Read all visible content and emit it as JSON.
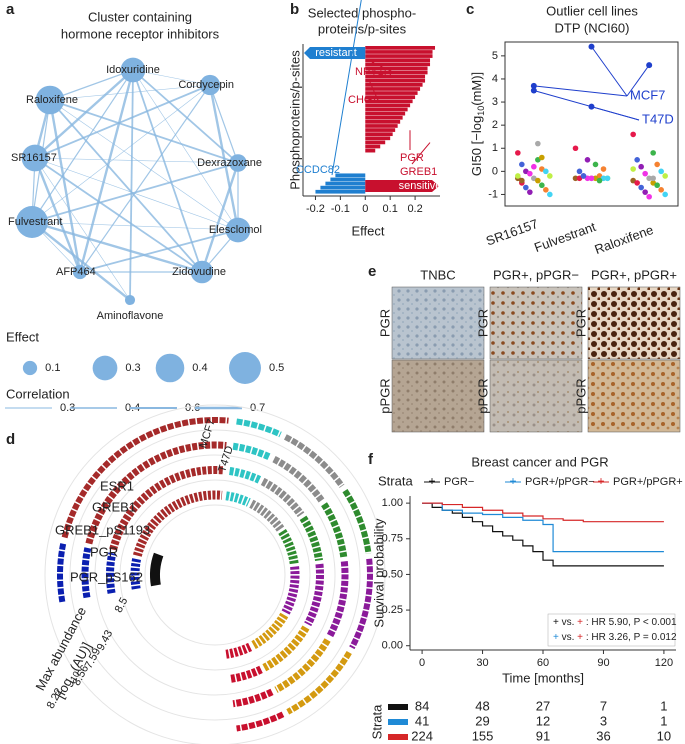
{
  "panel_labels": [
    "a",
    "b",
    "c",
    "d",
    "e",
    "f"
  ],
  "network": {
    "title": [
      "Cluster containing",
      "hormone receptor inhibitors"
    ],
    "nodes": [
      {
        "label": "Idoxuridine",
        "effect": 0.3
      },
      {
        "label": "Cordycepin",
        "effect": 0.2
      },
      {
        "label": "Raloxifene",
        "effect": 0.4
      },
      {
        "label": "Dexrazoxane",
        "effect": 0.15
      },
      {
        "label": "SR16157",
        "effect": 0.35
      },
      {
        "label": "Elesclomol",
        "effect": 0.3
      },
      {
        "label": "Fulvestrant",
        "effect": 0.5
      },
      {
        "label": "Zidovudine",
        "effect": 0.25
      },
      {
        "label": "AFP464",
        "effect": 0.1
      },
      {
        "label": "Aminoflavone",
        "effect": 0.05
      }
    ],
    "legend": {
      "effect_title": "Effect",
      "effect": [
        0.1,
        0.3,
        0.4,
        0.5
      ],
      "correlation_title": "Correlation",
      "correlation": [
        0.3,
        0.4,
        0.6,
        0.7
      ]
    }
  },
  "chart_data": [
    {
      "type": "hbar",
      "title": [
        "Selected phospho-",
        "proteins/p-sites"
      ],
      "y_label": "Phosphoproteins/p-sites",
      "x_label": "Effect",
      "xlim": [
        -0.25,
        0.3
      ],
      "xticks": [
        -0.2,
        -0.1,
        0,
        0.1,
        0.2
      ],
      "series": [
        {
          "name": "sensitive",
          "color": "#c8102e",
          "values": [
            0.28,
            0.27,
            0.27,
            0.26,
            0.26,
            0.25,
            0.25,
            0.24,
            0.24,
            0.23,
            0.22,
            0.21,
            0.2,
            0.19,
            0.18,
            0.17,
            0.16,
            0.15,
            0.14,
            0.13,
            0.12,
            0.11,
            0.1,
            0.08,
            0.06,
            0.04
          ]
        },
        {
          "name": "resistant",
          "color": "#1f7fd0",
          "values": [
            -0.12,
            -0.14,
            -0.16,
            -0.18,
            -0.2
          ]
        }
      ],
      "annotations": [
        "NPY1R",
        "CHGA",
        "PGR",
        "GREB1",
        "CCDC82"
      ]
    },
    {
      "type": "swarm",
      "title": [
        "Outlier cell lines",
        "DTP (NCI60)"
      ],
      "y_label": [
        "GI50 [−log",
        "10",
        "(mM)]"
      ],
      "categories": [
        "SR16157",
        "Fulvestrant",
        "Raloxifene"
      ],
      "ylim": [
        -1.5,
        5.6
      ],
      "yticks": [
        -1,
        0,
        1,
        2,
        3,
        4,
        5
      ],
      "values": [
        [
          0.8,
          0.5,
          0.3,
          0.1,
          0,
          0,
          -0.1,
          -0.2,
          -0.3,
          -0.3,
          -0.4,
          -0.5,
          -0.6,
          -0.7,
          -0.8,
          -0.9,
          -1,
          0.2,
          -0.2,
          1.2,
          -0.4,
          0.6
        ],
        [
          1.0,
          0.3,
          0,
          -0.2,
          -0.2,
          -0.3,
          -0.3,
          -0.3,
          -0.3,
          -0.3,
          -0.3,
          -0.3,
          -0.4,
          -0.2,
          0.1,
          0.5,
          -0.3,
          -0.3
        ],
        [
          1.6,
          0.8,
          0.5,
          0.3,
          0.2,
          0,
          -0.1,
          -0.2,
          -0.3,
          -0.4,
          -0.5,
          -0.5,
          -0.6,
          -0.7,
          -0.8,
          -0.9,
          -1,
          -1.1,
          0.1,
          -0.3
        ]
      ],
      "point_colors": [
        "#e6194b",
        "#3cb44b",
        "#4363d8",
        "#f58231",
        "#911eb4",
        "#42d4f4",
        "#f032e6",
        "#bfef45",
        "#a9a9a9",
        "#9a6324",
        "#c8a000"
      ],
      "series": [
        {
          "name": "MCF7",
          "color": "#1f3fcc",
          "values": [
            3.7,
            5.4,
            4.6
          ]
        },
        {
          "name": "T47D",
          "color": "#1f3fcc",
          "values": [
            3.5,
            2.8,
            null
          ]
        }
      ]
    },
    {
      "type": "survival",
      "title": "Breast cancer and PGR",
      "legend_title": "Strata",
      "y_label": "Survival probability",
      "x_label": "Time [months]",
      "xlim": [
        -6,
        126
      ],
      "xticks": [
        0,
        30,
        60,
        90,
        120
      ],
      "ylim": [
        -0.03,
        1.05
      ],
      "yticks": [
        {
          "value": 0,
          "label": "0.00"
        },
        {
          "value": 0.25,
          "label": "0.25"
        },
        {
          "value": 0.5,
          "label": "0.50"
        },
        {
          "value": 0.75,
          "label": "0.75"
        },
        {
          "value": 1,
          "label": "1.00"
        }
      ],
      "series": [
        {
          "name": "PGR−",
          "color": "#111111",
          "x": [
            0,
            5,
            10,
            15,
            20,
            25,
            30,
            35,
            40,
            45,
            50,
            55,
            60,
            65,
            70,
            120
          ],
          "values": [
            1,
            0.97,
            0.95,
            0.93,
            0.9,
            0.87,
            0.84,
            0.8,
            0.77,
            0.74,
            0.7,
            0.66,
            0.6,
            0.56,
            0.56,
            0.56
          ]
        },
        {
          "name": "PGR+/pPGR−",
          "color": "#1f8ad6",
          "x": [
            0,
            10,
            20,
            30,
            40,
            50,
            60,
            65,
            70,
            120
          ],
          "values": [
            1,
            0.95,
            0.93,
            0.92,
            0.9,
            0.88,
            0.85,
            0.66,
            0.66,
            0.66
          ]
        },
        {
          "name": "PGR+/pPGR+",
          "color": "#d62728",
          "x": [
            0,
            10,
            20,
            30,
            40,
            50,
            60,
            70,
            80,
            90,
            120
          ],
          "values": [
            1,
            0.99,
            0.97,
            0.95,
            0.93,
            0.91,
            0.89,
            0.88,
            0.87,
            0.87,
            0.87
          ]
        }
      ],
      "annotations": [
        {
          "prefix": "vs.",
          "text": ": HR 5.90, P < 0.001"
        },
        {
          "prefix": "vs.",
          "text": ": HR 3.26, P = 0.012"
        }
      ],
      "risk_table": {
        "label": "Strata",
        "rows": [
          [
            84,
            48,
            27,
            7,
            1
          ],
          [
            41,
            29,
            12,
            3,
            1
          ],
          [
            224,
            155,
            91,
            36,
            10
          ]
        ]
      }
    }
  ],
  "circular": {
    "tracks": [
      "ESR1",
      "GREB1",
      "GREB1_pS1193",
      "PGR",
      "PGR_pS162"
    ],
    "cell_lines": [
      "MCF7",
      "T47D"
    ],
    "scale_title": [
      "Max abundance",
      "[log",
      "10",
      "(AU)]"
    ],
    "scale_labels": [
      "8.5",
      "9.43",
      "7.59",
      "8.56",
      "8.22"
    ]
  },
  "ihc": {
    "columns": [
      "TNBC",
      "PGR+, pPGR−",
      "PGR+, pPGR+"
    ],
    "rows": [
      "PGR",
      "pPGR"
    ]
  }
}
